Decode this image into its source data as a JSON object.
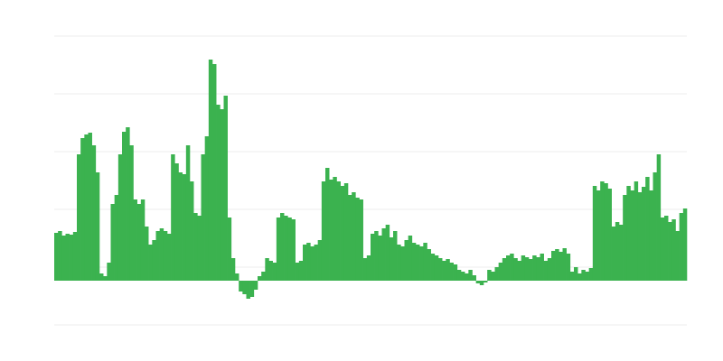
{
  "chart_data": {
    "type": "bar",
    "color": "#3bb24f",
    "grid": true,
    "ylim": [
      -49,
      271
    ],
    "yticks": [
      -49,
      15,
      79,
      143,
      207,
      271
    ],
    "values": [
      53,
      55,
      50,
      52,
      51,
      54,
      140,
      158,
      162,
      164,
      150,
      120,
      8,
      5,
      20,
      85,
      95,
      140,
      165,
      170,
      150,
      90,
      85,
      90,
      60,
      40,
      45,
      55,
      58,
      55,
      52,
      140,
      130,
      120,
      118,
      150,
      110,
      75,
      72,
      140,
      160,
      245,
      240,
      195,
      190,
      205,
      70,
      25,
      8,
      -12,
      -15,
      -20,
      -18,
      -10,
      5,
      10,
      25,
      22,
      20,
      70,
      75,
      72,
      70,
      68,
      20,
      22,
      40,
      42,
      38,
      40,
      45,
      110,
      125,
      112,
      115,
      110,
      105,
      108,
      95,
      98,
      92,
      90,
      25,
      28,
      52,
      55,
      50,
      58,
      62,
      48,
      55,
      40,
      38,
      45,
      50,
      42,
      40,
      38,
      42,
      35,
      30,
      28,
      25,
      22,
      24,
      20,
      18,
      12,
      10,
      8,
      12,
      6,
      -3,
      -5,
      -2,
      12,
      10,
      15,
      20,
      25,
      28,
      30,
      25,
      22,
      28,
      26,
      24,
      28,
      26,
      30,
      22,
      25,
      33,
      35,
      32,
      36,
      30,
      10,
      15,
      8,
      12,
      10,
      14,
      105,
      100,
      110,
      108,
      102,
      60,
      65,
      62,
      95,
      105,
      100,
      110,
      98,
      104,
      115,
      100,
      120,
      140,
      70,
      72,
      65,
      68,
      55,
      75,
      80
    ]
  }
}
